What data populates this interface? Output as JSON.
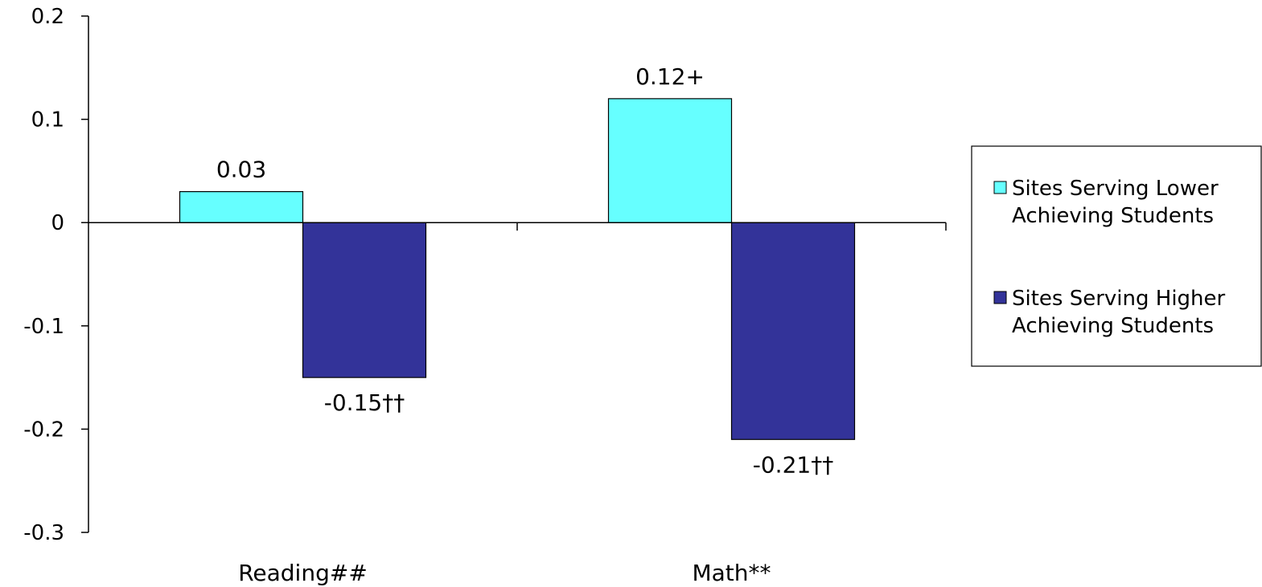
{
  "chart_data": {
    "type": "bar",
    "categories": [
      "Reading##",
      "Math**"
    ],
    "series": [
      {
        "name": "Sites Serving Lower Achieving Students",
        "values": [
          0.03,
          0.12
        ],
        "labels": [
          "0.03",
          "0.12+"
        ],
        "color": "#66ffff"
      },
      {
        "name": "Sites Serving Higher Achieving Students",
        "values": [
          -0.15,
          -0.21
        ],
        "labels": [
          "-0.15††",
          "-0.21††"
        ],
        "color": "#333399"
      }
    ],
    "ylim": [
      -0.3,
      0.2
    ],
    "yticks": [
      0.2,
      0.1,
      0,
      -0.1,
      -0.2,
      -0.3
    ],
    "ytick_labels": [
      "0.2",
      "0.1",
      "0",
      "-0.1",
      "-0.2",
      "-0.3"
    ],
    "legend_lines": [
      [
        "Sites Serving Lower",
        "Achieving Students"
      ],
      [
        "Sites Serving Higher",
        "Achieving Students"
      ]
    ],
    "legend_position": "right",
    "grid": false
  }
}
